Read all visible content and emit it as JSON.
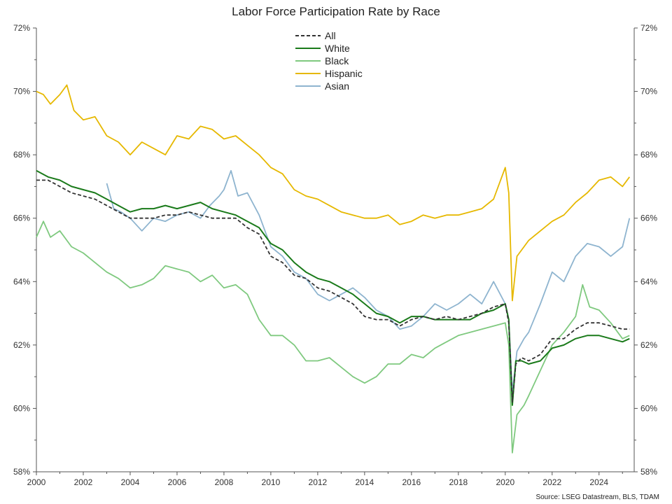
{
  "chart_data": {
    "type": "line",
    "title": "Labor Force Participation Rate by Race",
    "source": "Source: LSEG Datastream, BLS, TDAM",
    "xlim": [
      2000,
      2025.5
    ],
    "ylim": [
      58,
      72
    ],
    "x_ticks": [
      2000,
      2002,
      2004,
      2006,
      2008,
      2010,
      2012,
      2014,
      2016,
      2018,
      2020,
      2022,
      2024
    ],
    "x_tick_labels": [
      "2000",
      "2002",
      "2004",
      "2006",
      "2008",
      "2010",
      "2012",
      "2014",
      "2016",
      "2018",
      "2020",
      "2022",
      "2024"
    ],
    "y_ticks": [
      58,
      60,
      62,
      64,
      66,
      68,
      70,
      72
    ],
    "y_tick_labels": [
      "58%",
      "60%",
      "62%",
      "64%",
      "66%",
      "68%",
      "70%",
      "72%"
    ],
    "grid": false,
    "legend_position": "top-center",
    "series": [
      {
        "name": "All",
        "color": "#333333",
        "dash": "dashed",
        "points": [
          [
            2000,
            67.2
          ],
          [
            2000.5,
            67.2
          ],
          [
            2001,
            67.0
          ],
          [
            2001.5,
            66.8
          ],
          [
            2002,
            66.7
          ],
          [
            2002.5,
            66.6
          ],
          [
            2003,
            66.4
          ],
          [
            2003.5,
            66.2
          ],
          [
            2004,
            66.0
          ],
          [
            2004.5,
            66.0
          ],
          [
            2005,
            66.0
          ],
          [
            2005.5,
            66.1
          ],
          [
            2006,
            66.1
          ],
          [
            2006.5,
            66.2
          ],
          [
            2007,
            66.1
          ],
          [
            2007.5,
            66.0
          ],
          [
            2008,
            66.0
          ],
          [
            2008.5,
            66.0
          ],
          [
            2009,
            65.7
          ],
          [
            2009.5,
            65.5
          ],
          [
            2010,
            64.8
          ],
          [
            2010.5,
            64.6
          ],
          [
            2011,
            64.2
          ],
          [
            2011.5,
            64.1
          ],
          [
            2012,
            63.8
          ],
          [
            2012.5,
            63.7
          ],
          [
            2013,
            63.5
          ],
          [
            2013.5,
            63.3
          ],
          [
            2014,
            62.9
          ],
          [
            2014.5,
            62.8
          ],
          [
            2015,
            62.8
          ],
          [
            2015.5,
            62.6
          ],
          [
            2016,
            62.8
          ],
          [
            2016.5,
            62.9
          ],
          [
            2017,
            62.8
          ],
          [
            2017.5,
            62.9
          ],
          [
            2018,
            62.8
          ],
          [
            2018.5,
            62.9
          ],
          [
            2019,
            63.0
          ],
          [
            2019.5,
            63.2
          ],
          [
            2020,
            63.3
          ],
          [
            2020.15,
            62.7
          ],
          [
            2020.3,
            60.2
          ],
          [
            2020.45,
            61.4
          ],
          [
            2020.7,
            61.6
          ],
          [
            2021,
            61.5
          ],
          [
            2021.5,
            61.7
          ],
          [
            2022,
            62.2
          ],
          [
            2022.5,
            62.2
          ],
          [
            2023,
            62.5
          ],
          [
            2023.5,
            62.7
          ],
          [
            2024,
            62.7
          ],
          [
            2024.5,
            62.6
          ],
          [
            2025,
            62.5
          ],
          [
            2025.3,
            62.5
          ]
        ]
      },
      {
        "name": "White",
        "color": "#1a7a1a",
        "dash": "solid",
        "points": [
          [
            2000,
            67.5
          ],
          [
            2000.5,
            67.3
          ],
          [
            2001,
            67.2
          ],
          [
            2001.5,
            67.0
          ],
          [
            2002,
            66.9
          ],
          [
            2002.5,
            66.8
          ],
          [
            2003,
            66.6
          ],
          [
            2003.5,
            66.4
          ],
          [
            2004,
            66.2
          ],
          [
            2004.5,
            66.3
          ],
          [
            2005,
            66.3
          ],
          [
            2005.5,
            66.4
          ],
          [
            2006,
            66.3
          ],
          [
            2006.5,
            66.4
          ],
          [
            2007,
            66.5
          ],
          [
            2007.5,
            66.3
          ],
          [
            2008,
            66.2
          ],
          [
            2008.5,
            66.1
          ],
          [
            2009,
            65.9
          ],
          [
            2009.5,
            65.7
          ],
          [
            2010,
            65.2
          ],
          [
            2010.5,
            65.0
          ],
          [
            2011,
            64.6
          ],
          [
            2011.5,
            64.3
          ],
          [
            2012,
            64.1
          ],
          [
            2012.5,
            64.0
          ],
          [
            2013,
            63.8
          ],
          [
            2013.5,
            63.6
          ],
          [
            2014,
            63.3
          ],
          [
            2014.5,
            63.0
          ],
          [
            2015,
            62.9
          ],
          [
            2015.5,
            62.7
          ],
          [
            2016,
            62.9
          ],
          [
            2016.5,
            62.9
          ],
          [
            2017,
            62.8
          ],
          [
            2017.5,
            62.8
          ],
          [
            2018,
            62.8
          ],
          [
            2018.5,
            62.8
          ],
          [
            2019,
            63.0
          ],
          [
            2019.5,
            63.1
          ],
          [
            2020,
            63.3
          ],
          [
            2020.15,
            62.8
          ],
          [
            2020.3,
            60.1
          ],
          [
            2020.45,
            61.5
          ],
          [
            2020.7,
            61.5
          ],
          [
            2021,
            61.4
          ],
          [
            2021.5,
            61.5
          ],
          [
            2022,
            61.9
          ],
          [
            2022.5,
            62.0
          ],
          [
            2023,
            62.2
          ],
          [
            2023.5,
            62.3
          ],
          [
            2024,
            62.3
          ],
          [
            2024.5,
            62.2
          ],
          [
            2025,
            62.1
          ],
          [
            2025.3,
            62.2
          ]
        ]
      },
      {
        "name": "Black",
        "color": "#7fc97f",
        "dash": "solid",
        "points": [
          [
            2000,
            65.4
          ],
          [
            2000.3,
            65.9
          ],
          [
            2000.6,
            65.4
          ],
          [
            2001,
            65.6
          ],
          [
            2001.5,
            65.1
          ],
          [
            2002,
            64.9
          ],
          [
            2002.5,
            64.6
          ],
          [
            2003,
            64.3
          ],
          [
            2003.5,
            64.1
          ],
          [
            2004,
            63.8
          ],
          [
            2004.5,
            63.9
          ],
          [
            2005,
            64.1
          ],
          [
            2005.5,
            64.5
          ],
          [
            2006,
            64.4
          ],
          [
            2006.5,
            64.3
          ],
          [
            2007,
            64.0
          ],
          [
            2007.5,
            64.2
          ],
          [
            2008,
            63.8
          ],
          [
            2008.5,
            63.9
          ],
          [
            2009,
            63.6
          ],
          [
            2009.5,
            62.8
          ],
          [
            2010,
            62.3
          ],
          [
            2010.5,
            62.3
          ],
          [
            2011,
            62.0
          ],
          [
            2011.5,
            61.5
          ],
          [
            2012,
            61.5
          ],
          [
            2012.5,
            61.6
          ],
          [
            2013,
            61.3
          ],
          [
            2013.5,
            61.0
          ],
          [
            2014,
            60.8
          ],
          [
            2014.5,
            61.0
          ],
          [
            2015,
            61.4
          ],
          [
            2015.5,
            61.4
          ],
          [
            2016,
            61.7
          ],
          [
            2016.5,
            61.6
          ],
          [
            2017,
            61.9
          ],
          [
            2017.5,
            62.1
          ],
          [
            2018,
            62.3
          ],
          [
            2018.5,
            62.4
          ],
          [
            2019,
            62.5
          ],
          [
            2019.5,
            62.6
          ],
          [
            2020,
            62.7
          ],
          [
            2020.15,
            62.0
          ],
          [
            2020.3,
            58.6
          ],
          [
            2020.5,
            59.8
          ],
          [
            2020.8,
            60.1
          ],
          [
            2021,
            60.4
          ],
          [
            2021.5,
            61.2
          ],
          [
            2022,
            62.0
          ],
          [
            2022.5,
            62.4
          ],
          [
            2023,
            62.9
          ],
          [
            2023.3,
            63.9
          ],
          [
            2023.6,
            63.2
          ],
          [
            2024,
            63.1
          ],
          [
            2024.5,
            62.7
          ],
          [
            2025,
            62.2
          ],
          [
            2025.3,
            62.3
          ]
        ]
      },
      {
        "name": "Hispanic",
        "color": "#e6b800",
        "dash": "solid",
        "points": [
          [
            2000,
            70.0
          ],
          [
            2000.3,
            69.9
          ],
          [
            2000.6,
            69.6
          ],
          [
            2001,
            69.9
          ],
          [
            2001.3,
            70.2
          ],
          [
            2001.6,
            69.4
          ],
          [
            2002,
            69.1
          ],
          [
            2002.5,
            69.2
          ],
          [
            2003,
            68.6
          ],
          [
            2003.5,
            68.4
          ],
          [
            2004,
            68.0
          ],
          [
            2004.5,
            68.4
          ],
          [
            2005,
            68.2
          ],
          [
            2005.5,
            68.0
          ],
          [
            2006,
            68.6
          ],
          [
            2006.5,
            68.5
          ],
          [
            2007,
            68.9
          ],
          [
            2007.5,
            68.8
          ],
          [
            2008,
            68.5
          ],
          [
            2008.5,
            68.6
          ],
          [
            2009,
            68.3
          ],
          [
            2009.5,
            68.0
          ],
          [
            2010,
            67.6
          ],
          [
            2010.5,
            67.4
          ],
          [
            2011,
            66.9
          ],
          [
            2011.5,
            66.7
          ],
          [
            2012,
            66.6
          ],
          [
            2012.5,
            66.4
          ],
          [
            2013,
            66.2
          ],
          [
            2013.5,
            66.1
          ],
          [
            2014,
            66.0
          ],
          [
            2014.5,
            66.0
          ],
          [
            2015,
            66.1
          ],
          [
            2015.5,
            65.8
          ],
          [
            2016,
            65.9
          ],
          [
            2016.5,
            66.1
          ],
          [
            2017,
            66.0
          ],
          [
            2017.5,
            66.1
          ],
          [
            2018,
            66.1
          ],
          [
            2018.5,
            66.2
          ],
          [
            2019,
            66.3
          ],
          [
            2019.5,
            66.6
          ],
          [
            2020,
            67.6
          ],
          [
            2020.15,
            66.8
          ],
          [
            2020.3,
            63.4
          ],
          [
            2020.5,
            64.8
          ],
          [
            2020.8,
            65.1
          ],
          [
            2021,
            65.3
          ],
          [
            2021.5,
            65.6
          ],
          [
            2022,
            65.9
          ],
          [
            2022.5,
            66.1
          ],
          [
            2023,
            66.5
          ],
          [
            2023.5,
            66.8
          ],
          [
            2024,
            67.2
          ],
          [
            2024.5,
            67.3
          ],
          [
            2025,
            67.0
          ],
          [
            2025.3,
            67.3
          ]
        ]
      },
      {
        "name": "Asian",
        "color": "#8eb4cf",
        "dash": "solid",
        "points": [
          [
            2003,
            67.1
          ],
          [
            2003.3,
            66.3
          ],
          [
            2003.6,
            66.2
          ],
          [
            2004,
            66.0
          ],
          [
            2004.5,
            65.6
          ],
          [
            2005,
            66.0
          ],
          [
            2005.5,
            65.9
          ],
          [
            2006,
            66.1
          ],
          [
            2006.5,
            66.2
          ],
          [
            2007,
            66.0
          ],
          [
            2007.4,
            66.4
          ],
          [
            2007.8,
            66.7
          ],
          [
            2008,
            66.9
          ],
          [
            2008.3,
            67.5
          ],
          [
            2008.6,
            66.7
          ],
          [
            2009,
            66.8
          ],
          [
            2009.5,
            66.1
          ],
          [
            2010,
            65.1
          ],
          [
            2010.5,
            64.8
          ],
          [
            2011,
            64.3
          ],
          [
            2011.5,
            64.1
          ],
          [
            2012,
            63.6
          ],
          [
            2012.5,
            63.4
          ],
          [
            2013,
            63.6
          ],
          [
            2013.5,
            63.8
          ],
          [
            2014,
            63.5
          ],
          [
            2014.5,
            63.1
          ],
          [
            2015,
            62.9
          ],
          [
            2015.5,
            62.5
          ],
          [
            2016,
            62.6
          ],
          [
            2016.5,
            62.9
          ],
          [
            2017,
            63.3
          ],
          [
            2017.5,
            63.1
          ],
          [
            2018,
            63.3
          ],
          [
            2018.5,
            63.6
          ],
          [
            2019,
            63.3
          ],
          [
            2019.5,
            64.0
          ],
          [
            2020,
            63.3
          ],
          [
            2020.15,
            62.8
          ],
          [
            2020.3,
            60.5
          ],
          [
            2020.5,
            61.8
          ],
          [
            2020.8,
            62.2
          ],
          [
            2021,
            62.4
          ],
          [
            2021.5,
            63.3
          ],
          [
            2022,
            64.3
          ],
          [
            2022.5,
            64.0
          ],
          [
            2023,
            64.8
          ],
          [
            2023.5,
            65.2
          ],
          [
            2024,
            65.1
          ],
          [
            2024.5,
            64.8
          ],
          [
            2025,
            65.1
          ],
          [
            2025.3,
            66.0
          ]
        ]
      }
    ]
  }
}
